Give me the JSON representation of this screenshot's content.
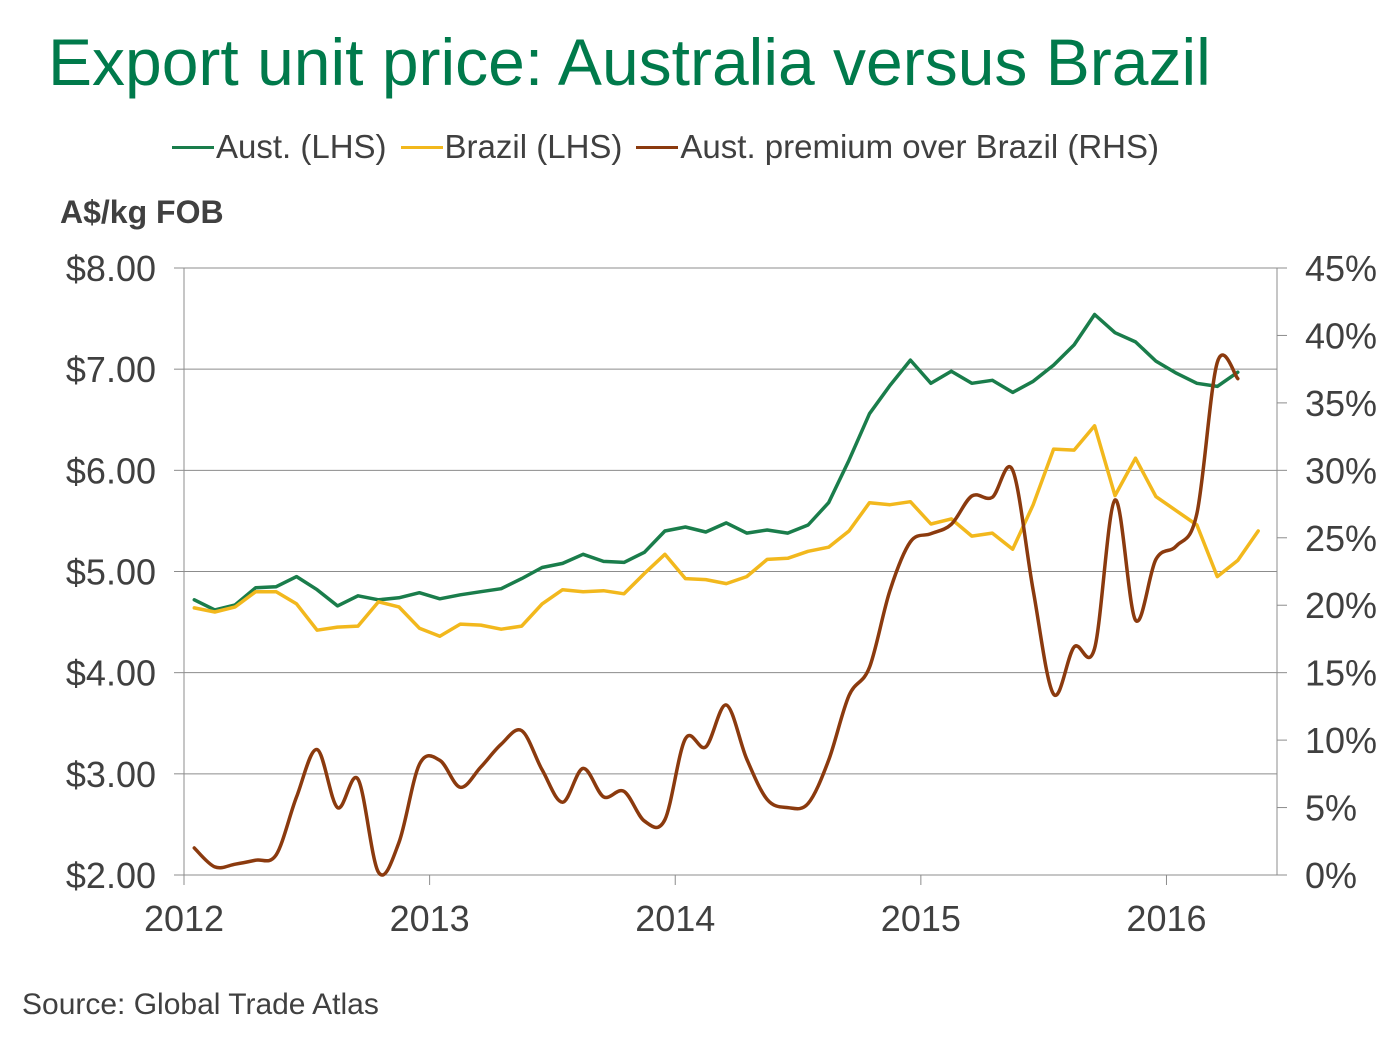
{
  "title": "Export unit price: Australia versus Brazil",
  "unit_label": "A$/kg FOB",
  "source": "Source:  Global  Trade Atlas",
  "colors": {
    "title": "#007a4b",
    "aust": "#1a7d4b",
    "brazil": "#f2b81d",
    "premium": "#8b3a0e",
    "grid": "#8c8c8c"
  },
  "chart_data": {
    "type": "line",
    "title": "Export unit price: Australia versus Brazil",
    "ylabel": "A$/kg FOB",
    "x_range": [
      2012.0,
      2016.45
    ],
    "left_axis": {
      "range": [
        2,
        8
      ],
      "ticks": [
        2,
        3,
        4,
        5,
        6,
        7,
        8
      ],
      "tick_labels": [
        "$2.00",
        "$3.00",
        "$4.00",
        "$5.00",
        "$6.00",
        "$7.00",
        "$8.00"
      ]
    },
    "right_axis": {
      "range": [
        0,
        45
      ],
      "ticks": [
        0,
        5,
        10,
        15,
        20,
        25,
        30,
        35,
        40,
        45
      ],
      "tick_labels": [
        "0%",
        "5%",
        "10%",
        "15%",
        "20%",
        "25%",
        "30%",
        "35%",
        "40%",
        "45%"
      ]
    },
    "x_ticks": [
      2012,
      2013,
      2014,
      2015,
      2016
    ],
    "x_tick_labels": [
      "2012",
      "2013",
      "2014",
      "2015",
      "2016"
    ],
    "grid": true,
    "legend_position": "top",
    "series": [
      {
        "name": "Aust. (LHS)",
        "axis": "left",
        "color": "#1a7d4b",
        "start": 2012.042,
        "step": 0.0833,
        "values": [
          4.72,
          4.62,
          4.67,
          4.84,
          4.85,
          4.95,
          4.82,
          4.66,
          4.76,
          4.72,
          4.74,
          4.79,
          4.73,
          4.77,
          4.8,
          4.83,
          4.93,
          5.04,
          5.08,
          5.17,
          5.1,
          5.09,
          5.19,
          5.4,
          5.44,
          5.39,
          5.48,
          5.38,
          5.41,
          5.38,
          5.46,
          5.68,
          6.1,
          6.56,
          6.84,
          7.09,
          6.86,
          6.98,
          6.86,
          6.89,
          6.77,
          6.88,
          7.04,
          7.24,
          7.54,
          7.36,
          7.27,
          7.08,
          6.96,
          6.86,
          6.83,
          6.97
        ]
      },
      {
        "name": "Brazil (LHS)",
        "axis": "left",
        "color": "#f2b81d",
        "start": 2012.042,
        "step": 0.0833,
        "values": [
          4.64,
          4.6,
          4.65,
          4.8,
          4.8,
          4.68,
          4.42,
          4.45,
          4.46,
          4.7,
          4.65,
          4.44,
          4.36,
          4.48,
          4.47,
          4.43,
          4.46,
          4.68,
          4.82,
          4.8,
          4.81,
          4.78,
          4.98,
          5.17,
          4.93,
          4.92,
          4.88,
          4.95,
          5.12,
          5.13,
          5.2,
          5.24,
          5.4,
          5.68,
          5.66,
          5.69,
          5.47,
          5.52,
          5.35,
          5.38,
          5.22,
          5.66,
          6.21,
          6.2,
          6.44,
          5.75,
          6.12,
          5.74,
          5.6,
          5.46,
          4.95,
          5.11,
          5.4
        ]
      },
      {
        "name": "Aust. premium over Brazil (RHS)",
        "axis": "right",
        "color": "#8b3a0e",
        "start": 2012.042,
        "step": 0.0833,
        "values": [
          2.0,
          0.6,
          0.8,
          1.1,
          1.5,
          5.8,
          9.3,
          5.0,
          7.1,
          0.2,
          2.4,
          8.2,
          8.5,
          6.5,
          8.0,
          9.7,
          10.7,
          7.8,
          5.4,
          7.9,
          5.8,
          6.2,
          4.0,
          4.1,
          10.1,
          9.5,
          12.6,
          8.6,
          5.6,
          5.0,
          5.3,
          8.5,
          13.3,
          15.4,
          21.1,
          24.7,
          25.3,
          26.0,
          28.1,
          28.0,
          30.0,
          21.1,
          13.4,
          16.9,
          16.8,
          27.8,
          18.9,
          23.4,
          24.4,
          26.8,
          38.0,
          36.8
        ]
      }
    ]
  }
}
